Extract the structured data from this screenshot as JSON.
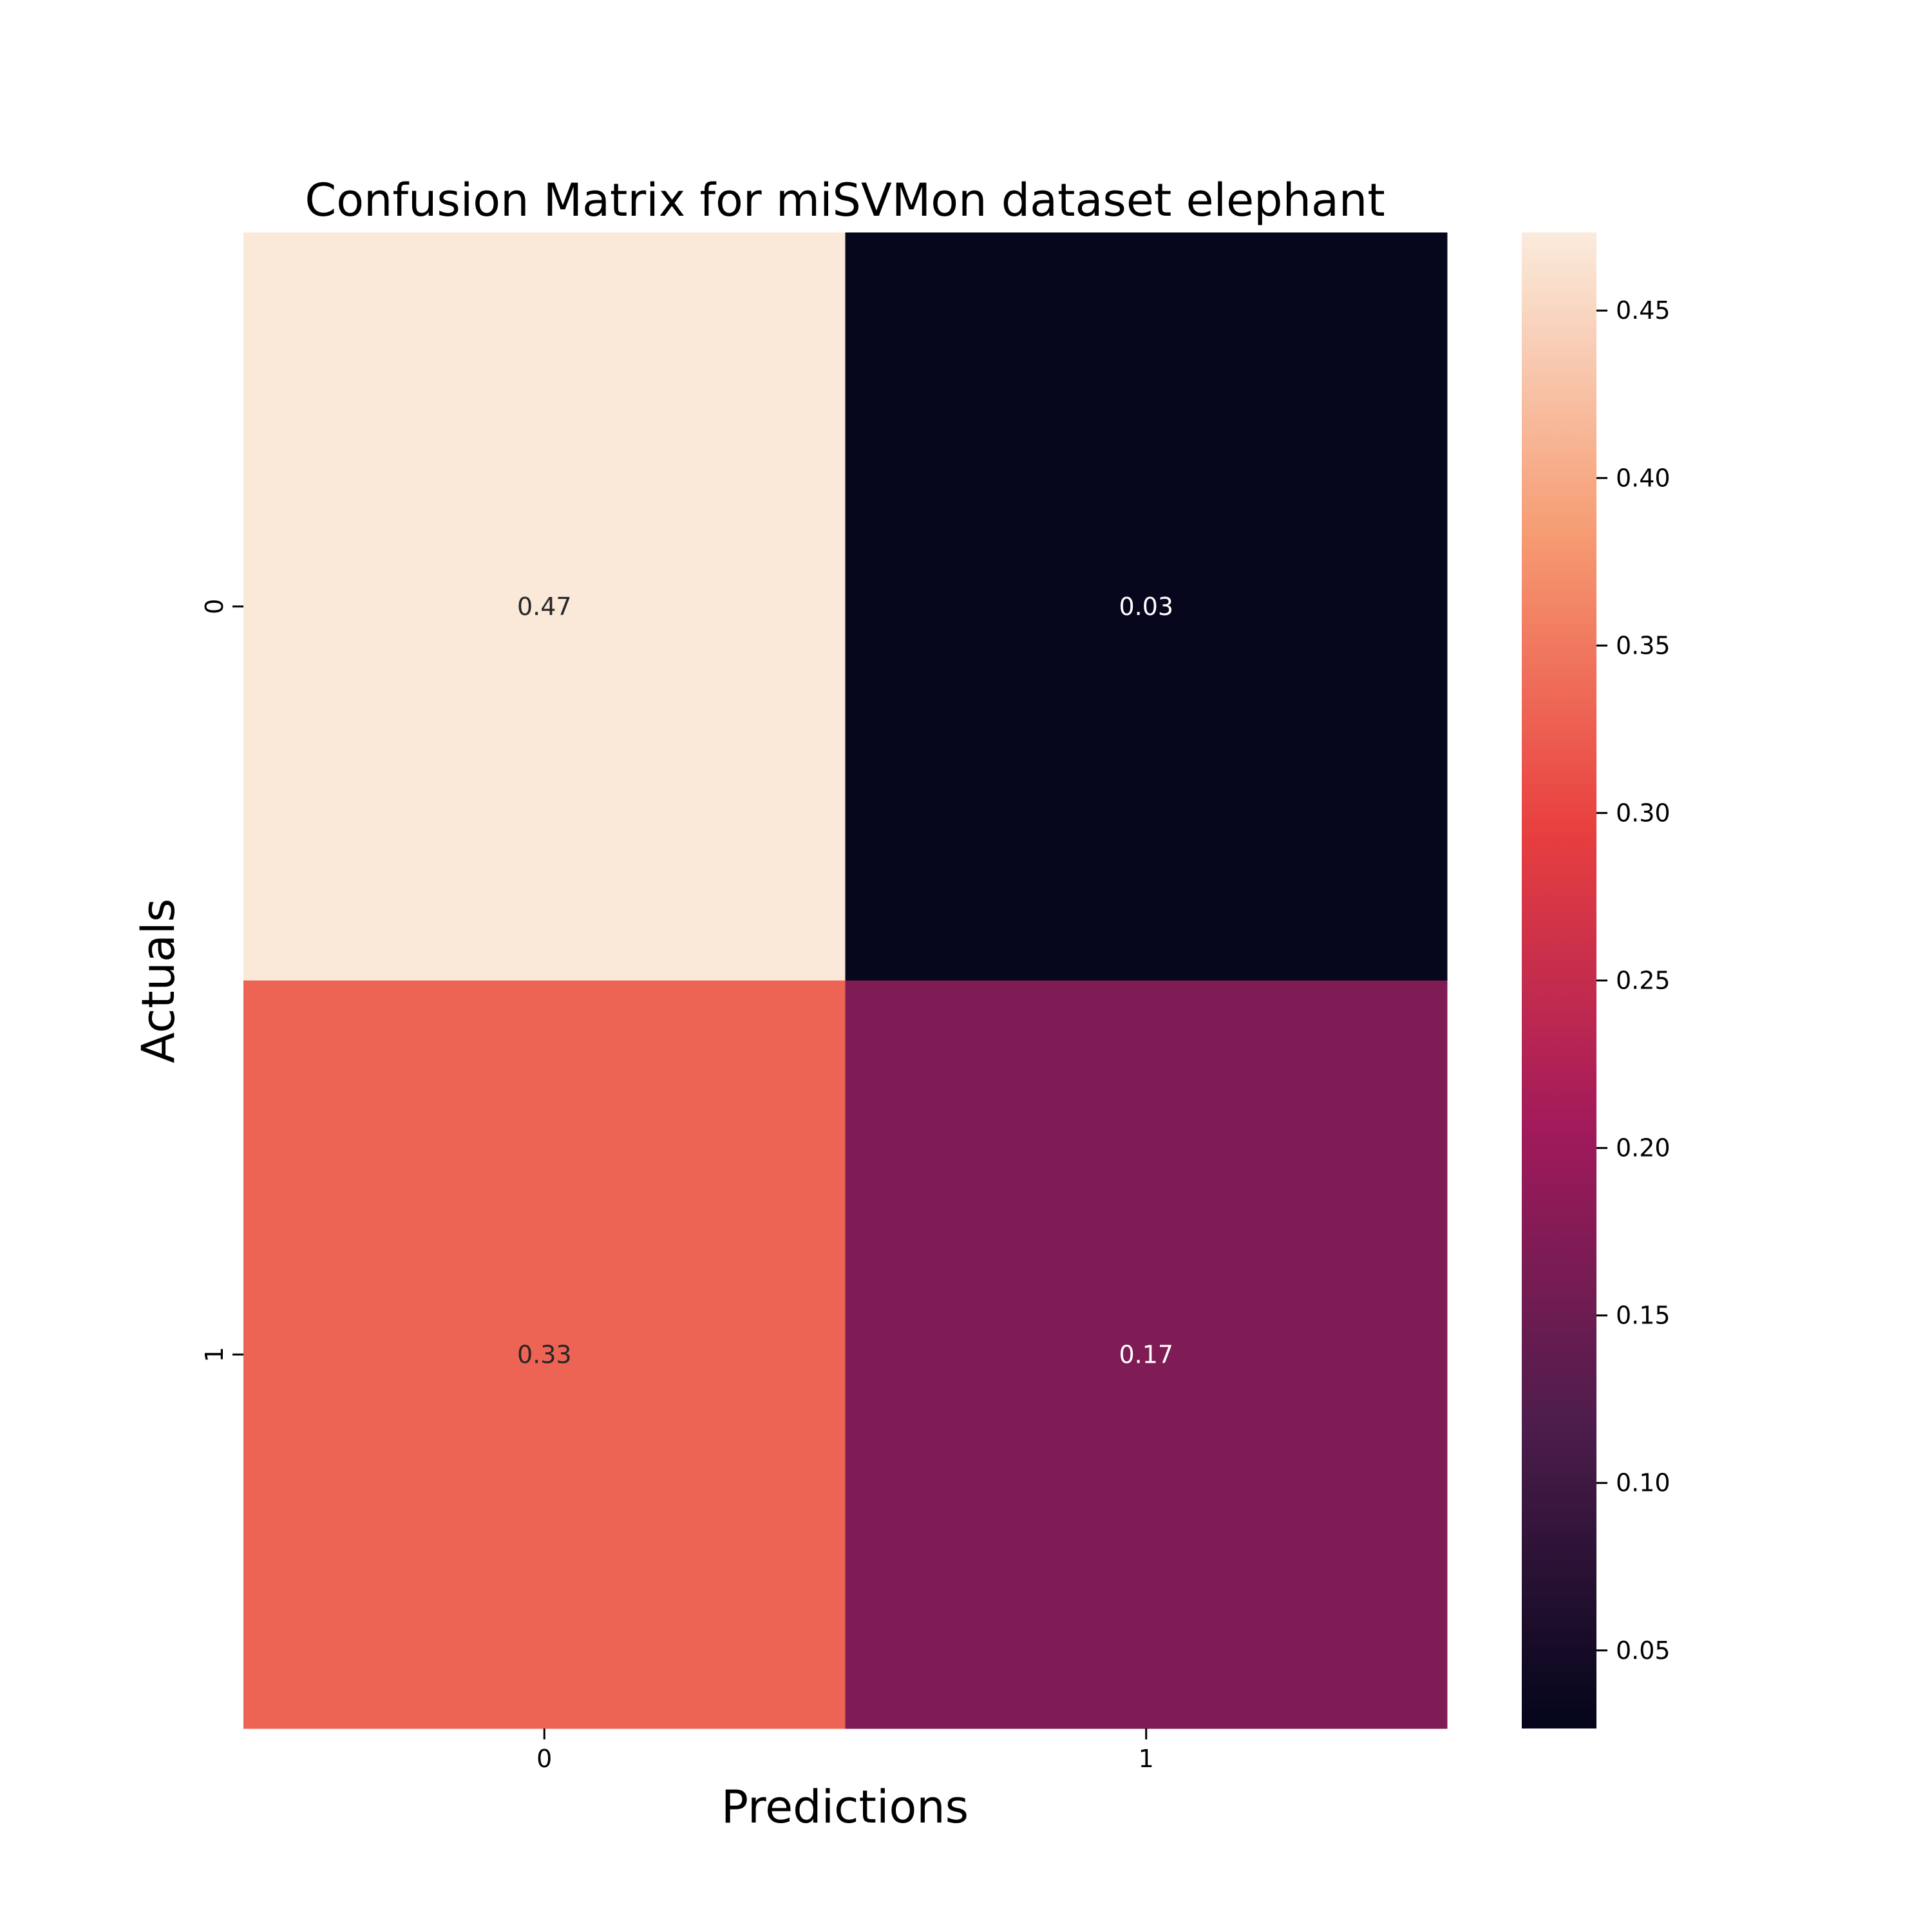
{
  "chart_data": {
    "type": "heatmap",
    "title": "Confusion Matrix for miSVMon dataset elephant",
    "xlabel": "Predictions",
    "ylabel": "Actuals",
    "x_categories": [
      "0",
      "1"
    ],
    "y_categories": [
      "0",
      "1"
    ],
    "values": [
      [
        0.47,
        0.03
      ],
      [
        0.33,
        0.17
      ]
    ],
    "cell_labels": [
      [
        "0.47",
        "0.03"
      ],
      [
        "0.33",
        "0.17"
      ]
    ],
    "colorbar": {
      "range": [
        0.0267,
        0.4733
      ],
      "ticks": [
        0.05,
        0.1,
        0.15,
        0.2,
        0.25,
        0.3,
        0.35,
        0.4,
        0.45
      ],
      "tick_labels": [
        "0.05",
        "0.10",
        "0.15",
        "0.20",
        "0.25",
        "0.30",
        "0.35",
        "0.40",
        "0.45"
      ],
      "colormap": "rocket",
      "colormap_stops": [
        "#03051a",
        "#4c1d4b",
        "#a11a5b",
        "#e83f3f",
        "#f69c73",
        "#faebdd"
      ]
    }
  }
}
